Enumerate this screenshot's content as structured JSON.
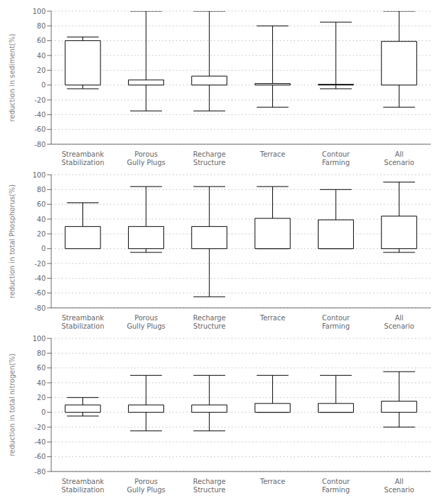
{
  "chart_data": [
    {
      "type": "bar",
      "ylabel": "reduction in sediment(%)",
      "categories": [
        "Streambank\nStabilization",
        "Porous\nGully Plugs",
        "Recharge\nStructure",
        "Terrace",
        "Contour\nFarming",
        "All\nScenario"
      ],
      "bar_bottom": [
        0,
        0,
        0,
        0,
        0,
        0
      ],
      "values": [
        60,
        7,
        12,
        2,
        1,
        59
      ],
      "whisker_min": [
        -5,
        -35,
        -35,
        -30,
        -5,
        -30
      ],
      "whisker_max": [
        65,
        100,
        100,
        80,
        85,
        100
      ],
      "color": "white",
      "ylim": [
        -80,
        100
      ],
      "yticks": [
        -80,
        -60,
        -40,
        -20,
        0,
        20,
        40,
        60,
        80,
        100
      ],
      "grid": true
    },
    {
      "type": "bar",
      "ylabel": "reduction in total Phosphorus(%)",
      "categories": [
        "Streambank\nStabilization",
        "Porous\nGully Plugs",
        "Recharge\nStructure",
        "Terrace",
        "Contour\nFarming",
        "All\nScenario"
      ],
      "bar_bottom": [
        0,
        0,
        0,
        0,
        0,
        0
      ],
      "values": [
        30,
        30,
        30,
        41,
        39,
        44
      ],
      "whisker_min": [
        8,
        -5,
        -65,
        0,
        0,
        -5
      ],
      "whisker_max": [
        62,
        84,
        84,
        84,
        80,
        90
      ],
      "color": "white",
      "ylim": [
        -80,
        100
      ],
      "yticks": [
        -80,
        -60,
        -40,
        -20,
        0,
        20,
        40,
        60,
        80,
        100
      ],
      "grid": true
    },
    {
      "type": "bar",
      "ylabel": "reduction in total nitrogen(%)",
      "categories": [
        "Streambank\nStabilization",
        "Porous\nGully Plugs",
        "Recharge\nStructure",
        "Terrace",
        "Contour\nFarming",
        "All\nScenario"
      ],
      "bar_bottom": [
        0,
        0,
        0,
        0,
        0,
        0
      ],
      "values": [
        10,
        10,
        10,
        12,
        12,
        15
      ],
      "whisker_min": [
        -5,
        -25,
        -25,
        0,
        0,
        -20
      ],
      "whisker_max": [
        20,
        50,
        50,
        50,
        50,
        55
      ],
      "color": "white",
      "ylim": [
        -80,
        100
      ],
      "yticks": [
        -80,
        -60,
        -40,
        -20,
        0,
        20,
        40,
        60,
        80,
        100
      ],
      "grid": true
    }
  ]
}
